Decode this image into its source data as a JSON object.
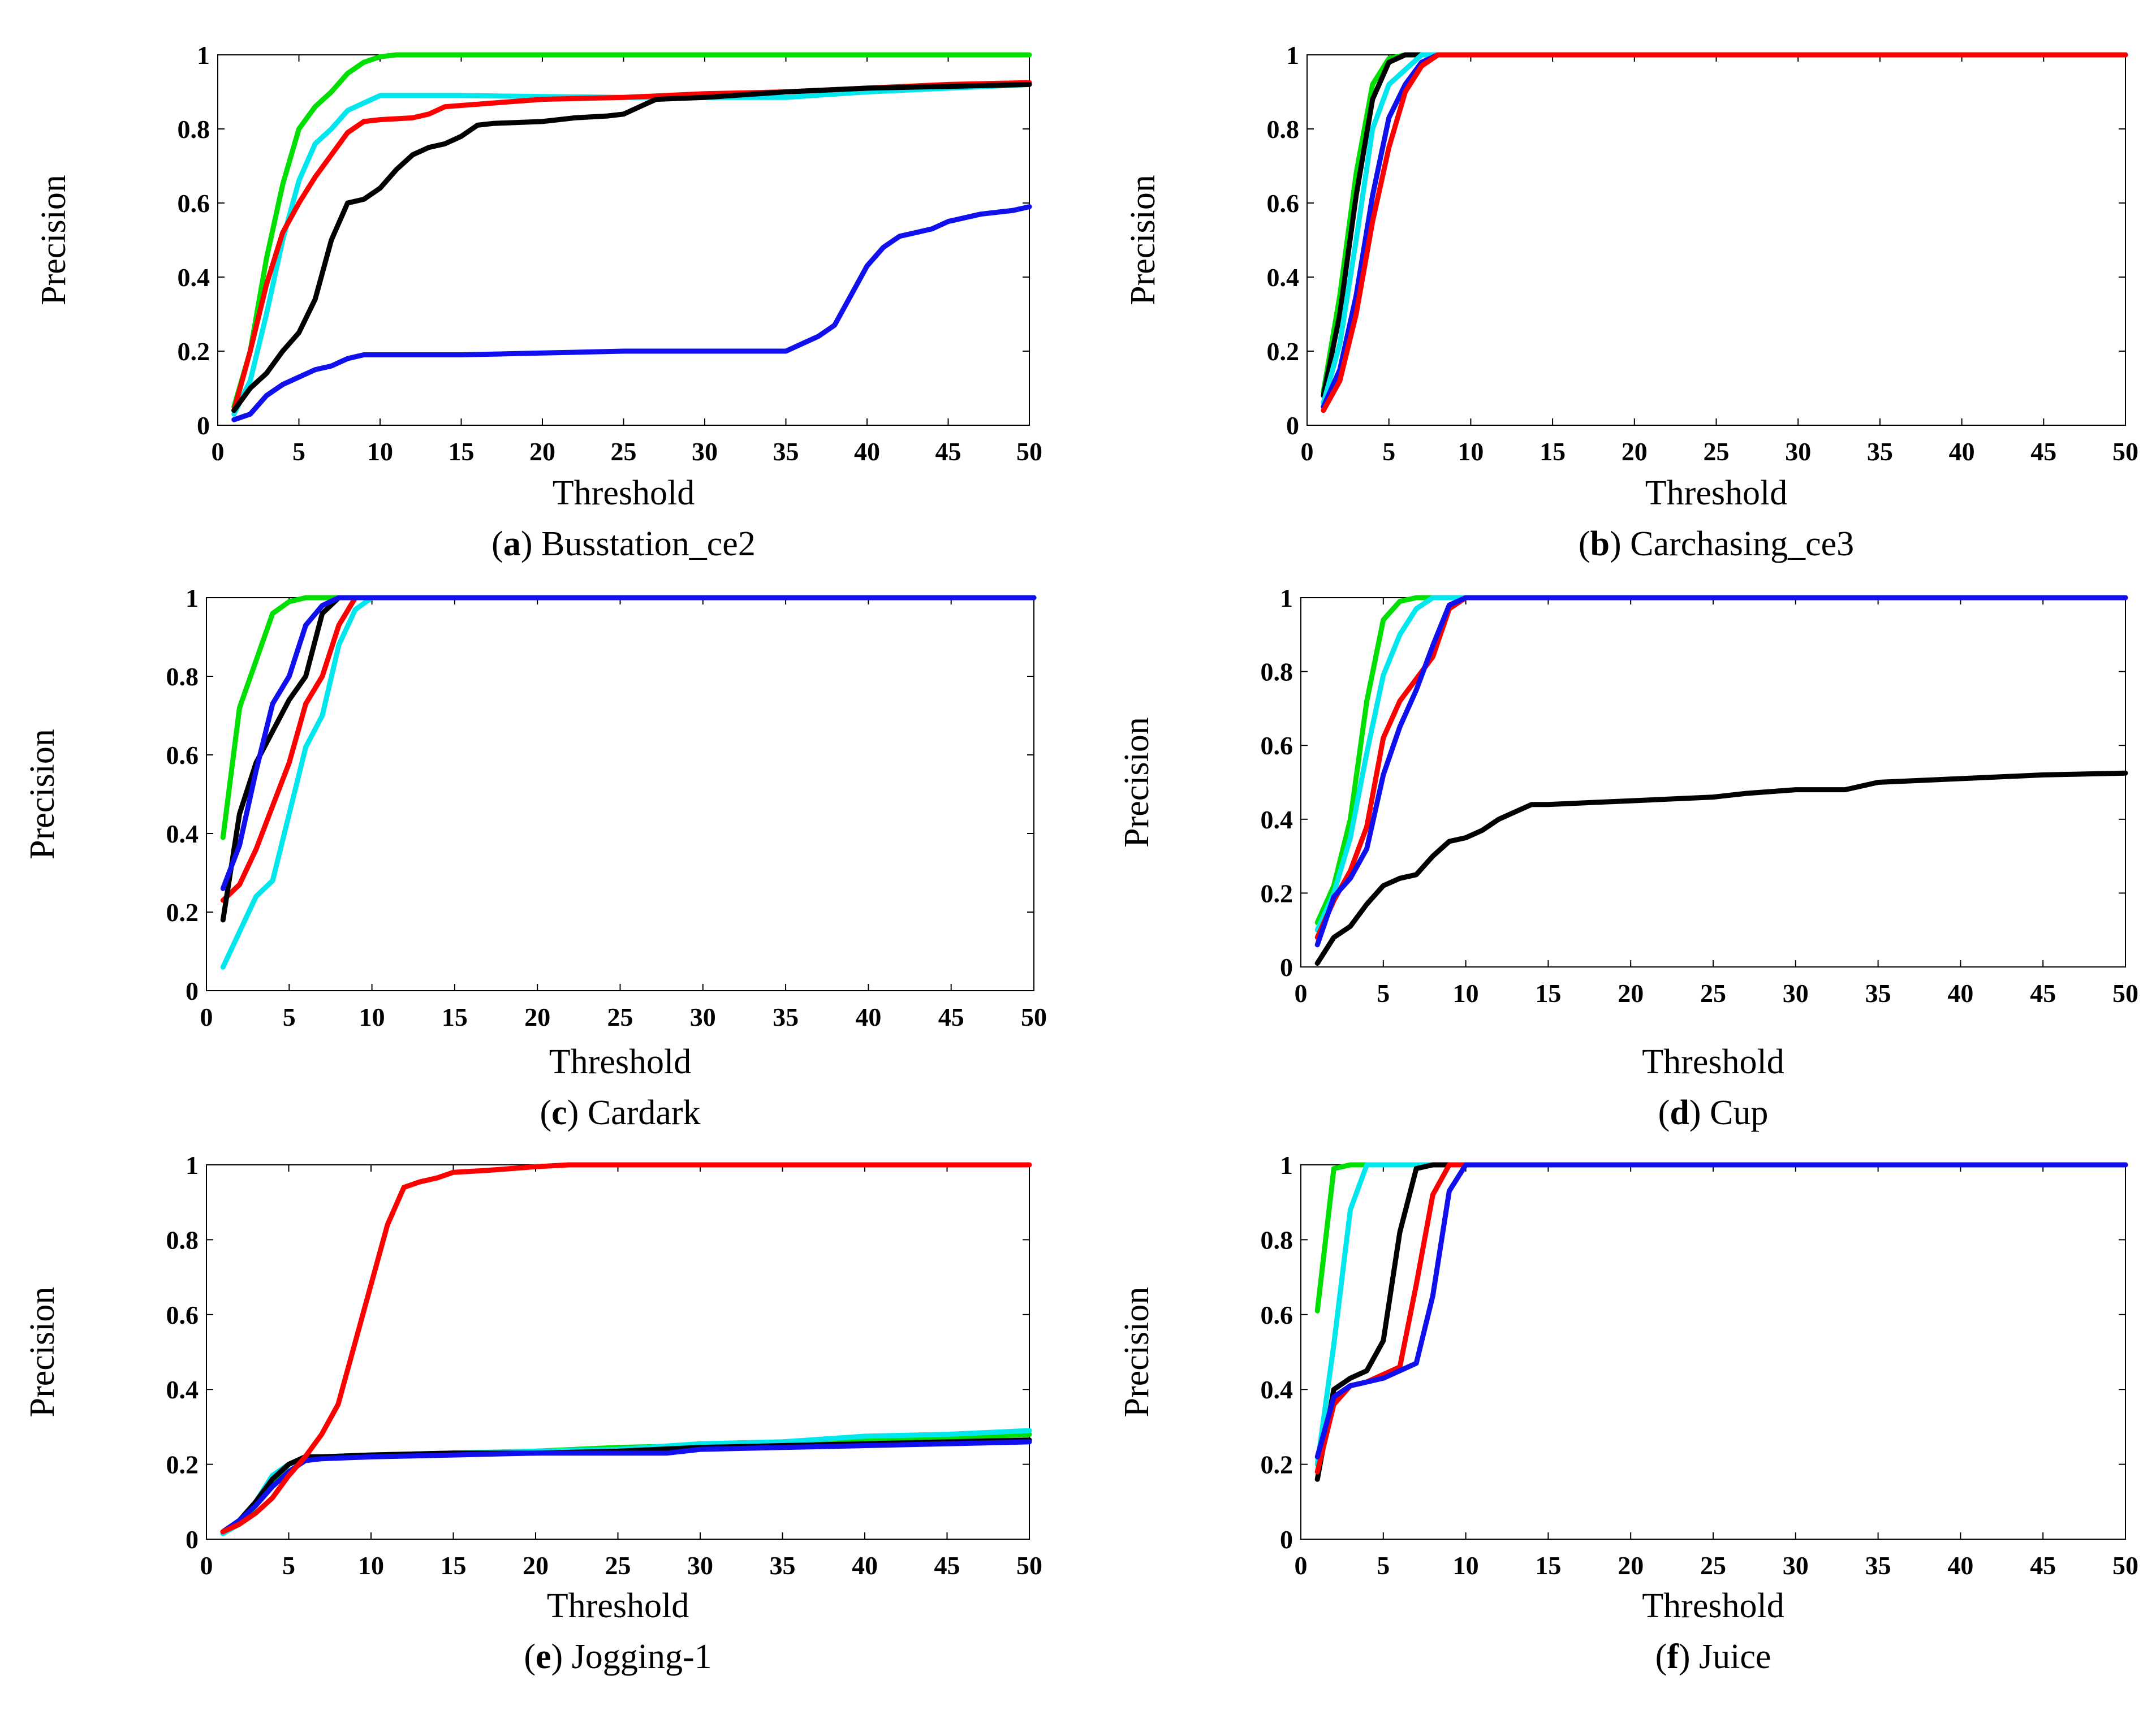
{
  "series_colors": {
    "green": "#00e000",
    "cyan": "#00e8ee",
    "red": "#ff0000",
    "black": "#000000",
    "blue": "#1010ee"
  },
  "chart_data": [
    {
      "type": "line",
      "panel_letter": "a",
      "title": "Busstation_ce2",
      "xlabel": "Threshold",
      "ylabel": "Precision",
      "xlim": [
        0,
        50
      ],
      "ylim": [
        0,
        1
      ],
      "xticks": [
        "0",
        "5",
        "10",
        "15",
        "20",
        "25",
        "30",
        "35",
        "40",
        "45",
        "50"
      ],
      "yticks": [
        "0",
        "0.2",
        "0.4",
        "0.6",
        "0.8",
        "1"
      ],
      "series": [
        {
          "name": "green",
          "x": [
            1,
            2,
            3,
            4,
            5,
            6,
            7,
            8,
            9,
            10,
            11,
            50
          ],
          "values": [
            0.05,
            0.2,
            0.45,
            0.65,
            0.8,
            0.86,
            0.9,
            0.95,
            0.98,
            0.995,
            1.0,
            1.0
          ]
        },
        {
          "name": "cyan",
          "x": [
            1,
            2,
            3,
            4,
            5,
            6,
            7,
            8,
            9,
            10,
            15,
            25,
            35,
            40,
            45,
            50
          ],
          "values": [
            0.03,
            0.12,
            0.3,
            0.5,
            0.66,
            0.76,
            0.8,
            0.85,
            0.87,
            0.89,
            0.89,
            0.885,
            0.885,
            0.9,
            0.91,
            0.92
          ]
        },
        {
          "name": "red",
          "x": [
            1,
            2,
            3,
            4,
            5,
            6,
            7,
            8,
            9,
            10,
            12,
            13,
            14,
            17,
            20,
            25,
            30,
            35,
            40,
            45,
            50
          ],
          "values": [
            0.04,
            0.2,
            0.38,
            0.52,
            0.6,
            0.67,
            0.73,
            0.79,
            0.82,
            0.825,
            0.83,
            0.84,
            0.86,
            0.87,
            0.88,
            0.885,
            0.895,
            0.9,
            0.91,
            0.92,
            0.925
          ]
        },
        {
          "name": "black",
          "x": [
            1,
            2,
            3,
            4,
            5,
            6,
            7,
            8,
            9,
            10,
            11,
            12,
            13,
            14,
            15,
            16,
            17,
            20,
            22,
            24,
            25,
            26,
            27,
            30,
            35,
            40,
            45,
            50
          ],
          "values": [
            0.04,
            0.1,
            0.14,
            0.2,
            0.25,
            0.34,
            0.5,
            0.6,
            0.61,
            0.64,
            0.69,
            0.73,
            0.75,
            0.76,
            0.78,
            0.81,
            0.815,
            0.82,
            0.83,
            0.835,
            0.84,
            0.86,
            0.88,
            0.885,
            0.9,
            0.91,
            0.915,
            0.92
          ]
        },
        {
          "name": "blue",
          "x": [
            1,
            2,
            3,
            4,
            5,
            6,
            7,
            8,
            9,
            10,
            15,
            20,
            25,
            30,
            35,
            36,
            37,
            38,
            39,
            40,
            41,
            42,
            43,
            44,
            45,
            46,
            47,
            48,
            49,
            50
          ],
          "values": [
            0.015,
            0.03,
            0.08,
            0.11,
            0.13,
            0.15,
            0.16,
            0.18,
            0.19,
            0.19,
            0.19,
            0.195,
            0.2,
            0.2,
            0.2,
            0.22,
            0.24,
            0.27,
            0.35,
            0.43,
            0.48,
            0.51,
            0.52,
            0.53,
            0.55,
            0.56,
            0.57,
            0.575,
            0.58,
            0.59
          ]
        }
      ]
    },
    {
      "type": "line",
      "panel_letter": "b",
      "title": "Carchasing_ce3",
      "xlabel": "Threshold",
      "ylabel": "Precision",
      "xlim": [
        0,
        50
      ],
      "ylim": [
        0,
        1
      ],
      "xticks": [
        "0",
        "5",
        "10",
        "15",
        "20",
        "25",
        "30",
        "35",
        "40",
        "45",
        "50"
      ],
      "yticks": [
        "0",
        "0.2",
        "0.4",
        "0.6",
        "0.8",
        "1"
      ],
      "series": [
        {
          "name": "green",
          "x": [
            1,
            2,
            3,
            4,
            5,
            6,
            50
          ],
          "values": [
            0.09,
            0.35,
            0.68,
            0.92,
            0.99,
            1.0,
            1.0
          ]
        },
        {
          "name": "black",
          "x": [
            1,
            2,
            3,
            4,
            5,
            6,
            7,
            50
          ],
          "values": [
            0.08,
            0.3,
            0.62,
            0.88,
            0.98,
            1.0,
            1.0,
            1.0
          ]
        },
        {
          "name": "cyan",
          "x": [
            1,
            2,
            3,
            4,
            5,
            6,
            7,
            50
          ],
          "values": [
            0.06,
            0.22,
            0.5,
            0.8,
            0.92,
            0.96,
            1.0,
            1.0
          ]
        },
        {
          "name": "blue",
          "x": [
            1,
            2,
            3,
            4,
            5,
            6,
            7,
            8,
            50
          ],
          "values": [
            0.05,
            0.15,
            0.35,
            0.62,
            0.83,
            0.92,
            0.98,
            1.0,
            1.0
          ]
        },
        {
          "name": "red",
          "x": [
            1,
            2,
            3,
            4,
            5,
            6,
            7,
            8,
            50
          ],
          "values": [
            0.04,
            0.12,
            0.3,
            0.55,
            0.75,
            0.9,
            0.97,
            1.0,
            1.0
          ]
        }
      ]
    },
    {
      "type": "line",
      "panel_letter": "c",
      "title": "Cardark",
      "xlabel": "Threshold",
      "ylabel": "Precision",
      "xlim": [
        0,
        50
      ],
      "ylim": [
        0,
        1
      ],
      "xticks": [
        "0",
        "5",
        "10",
        "15",
        "20",
        "25",
        "30",
        "35",
        "40",
        "45",
        "50"
      ],
      "yticks": [
        "0",
        "0.2",
        "0.4",
        "0.6",
        "0.8",
        "1"
      ],
      "series": [
        {
          "name": "green",
          "x": [
            1,
            2,
            3,
            4,
            5,
            6,
            50
          ],
          "values": [
            0.39,
            0.72,
            0.84,
            0.96,
            0.99,
            1.0,
            1.0
          ]
        },
        {
          "name": "cyan",
          "x": [
            1,
            2,
            3,
            4,
            5,
            6,
            7,
            8,
            9,
            10,
            50
          ],
          "values": [
            0.06,
            0.15,
            0.24,
            0.28,
            0.45,
            0.62,
            0.7,
            0.88,
            0.97,
            1.0,
            1.0
          ]
        },
        {
          "name": "red",
          "x": [
            1,
            2,
            3,
            4,
            5,
            6,
            7,
            8,
            9,
            50
          ],
          "values": [
            0.23,
            0.27,
            0.36,
            0.47,
            0.58,
            0.73,
            0.8,
            0.93,
            1.0,
            1.0
          ]
        },
        {
          "name": "black",
          "x": [
            1,
            2,
            3,
            4,
            5,
            6,
            7,
            8,
            50
          ],
          "values": [
            0.18,
            0.45,
            0.58,
            0.66,
            0.74,
            0.8,
            0.96,
            1.0,
            1.0
          ]
        },
        {
          "name": "blue",
          "x": [
            1,
            2,
            3,
            4,
            5,
            6,
            7,
            8,
            50
          ],
          "values": [
            0.26,
            0.37,
            0.56,
            0.73,
            0.8,
            0.93,
            0.98,
            1.0,
            1.0
          ]
        }
      ]
    },
    {
      "type": "line",
      "panel_letter": "d",
      "title": "Cup",
      "xlabel": "Threshold",
      "ylabel": "Precision",
      "xlim": [
        0,
        50
      ],
      "ylim": [
        0,
        1
      ],
      "xticks": [
        "0",
        "5",
        "10",
        "15",
        "20",
        "25",
        "30",
        "35",
        "40",
        "45",
        "50"
      ],
      "yticks": [
        "0",
        "0.2",
        "0.4",
        "0.6",
        "0.8",
        "1"
      ],
      "series": [
        {
          "name": "green",
          "x": [
            1,
            2,
            3,
            4,
            5,
            6,
            7,
            50
          ],
          "values": [
            0.12,
            0.22,
            0.4,
            0.72,
            0.94,
            0.99,
            1.0,
            1.0
          ]
        },
        {
          "name": "cyan",
          "x": [
            1,
            2,
            3,
            4,
            5,
            6,
            7,
            8,
            50
          ],
          "values": [
            0.1,
            0.2,
            0.35,
            0.58,
            0.79,
            0.9,
            0.97,
            1.0,
            1.0
          ]
        },
        {
          "name": "red",
          "x": [
            1,
            2,
            3,
            4,
            5,
            6,
            7,
            8,
            9,
            10,
            50
          ],
          "values": [
            0.08,
            0.18,
            0.26,
            0.38,
            0.62,
            0.72,
            0.78,
            0.84,
            0.97,
            1.0,
            1.0
          ]
        },
        {
          "name": "blue",
          "x": [
            1,
            2,
            3,
            4,
            5,
            6,
            7,
            8,
            9,
            10,
            50
          ],
          "values": [
            0.06,
            0.19,
            0.24,
            0.32,
            0.52,
            0.65,
            0.75,
            0.87,
            0.98,
            1.0,
            1.0
          ]
        },
        {
          "name": "black",
          "x": [
            1,
            2,
            3,
            4,
            5,
            6,
            7,
            8,
            9,
            10,
            11,
            12,
            13,
            14,
            15,
            20,
            25,
            27,
            30,
            33,
            35,
            40,
            45,
            50
          ],
          "values": [
            0.01,
            0.08,
            0.11,
            0.17,
            0.22,
            0.24,
            0.25,
            0.3,
            0.34,
            0.35,
            0.37,
            0.4,
            0.42,
            0.44,
            0.44,
            0.45,
            0.46,
            0.47,
            0.48,
            0.48,
            0.5,
            0.51,
            0.52,
            0.525
          ]
        }
      ]
    },
    {
      "type": "line",
      "panel_letter": "e",
      "title": "Jogging-1",
      "xlabel": "Threshold",
      "ylabel": "Precision",
      "xlim": [
        0,
        50
      ],
      "ylim": [
        0,
        1
      ],
      "xticks": [
        "0",
        "5",
        "10",
        "15",
        "20",
        "25",
        "30",
        "35",
        "40",
        "45",
        "50"
      ],
      "yticks": [
        "0",
        "0.2",
        "0.4",
        "0.6",
        "0.8",
        "1"
      ],
      "series": [
        {
          "name": "green",
          "x": [
            1,
            2,
            3,
            4,
            5,
            6,
            7,
            10,
            15,
            20,
            25,
            30,
            35,
            40,
            45,
            50
          ],
          "values": [
            0.02,
            0.04,
            0.09,
            0.15,
            0.2,
            0.22,
            0.22,
            0.225,
            0.23,
            0.235,
            0.245,
            0.25,
            0.26,
            0.265,
            0.27,
            0.28
          ]
        },
        {
          "name": "cyan",
          "x": [
            1,
            2,
            3,
            4,
            5,
            6,
            7,
            10,
            15,
            20,
            25,
            30,
            35,
            40,
            45,
            50
          ],
          "values": [
            0.015,
            0.04,
            0.1,
            0.17,
            0.2,
            0.22,
            0.22,
            0.225,
            0.23,
            0.235,
            0.24,
            0.255,
            0.26,
            0.275,
            0.28,
            0.29
          ]
        },
        {
          "name": "black",
          "x": [
            1,
            2,
            3,
            4,
            5,
            6,
            7,
            10,
            15,
            20,
            25,
            30,
            35,
            40,
            45,
            50
          ],
          "values": [
            0.02,
            0.05,
            0.1,
            0.16,
            0.2,
            0.22,
            0.22,
            0.225,
            0.23,
            0.23,
            0.235,
            0.245,
            0.25,
            0.255,
            0.26,
            0.265
          ]
        },
        {
          "name": "blue",
          "x": [
            1,
            2,
            3,
            4,
            5,
            6,
            7,
            10,
            15,
            20,
            25,
            28,
            30,
            35,
            40,
            45,
            50
          ],
          "values": [
            0.02,
            0.05,
            0.09,
            0.14,
            0.18,
            0.21,
            0.215,
            0.22,
            0.225,
            0.23,
            0.23,
            0.23,
            0.24,
            0.245,
            0.25,
            0.255,
            0.26
          ]
        },
        {
          "name": "red",
          "x": [
            1,
            2,
            3,
            4,
            5,
            6,
            7,
            8,
            9,
            10,
            11,
            12,
            13,
            14,
            15,
            17,
            20,
            22,
            25,
            50
          ],
          "values": [
            0.02,
            0.04,
            0.07,
            0.11,
            0.17,
            0.22,
            0.28,
            0.36,
            0.52,
            0.68,
            0.84,
            0.94,
            0.955,
            0.965,
            0.98,
            0.985,
            0.995,
            1.0,
            1.0,
            1.0
          ]
        }
      ]
    },
    {
      "type": "line",
      "panel_letter": "f",
      "title": "Juice",
      "xlabel": "Threshold",
      "ylabel": "Precision",
      "xlim": [
        0,
        50
      ],
      "ylim": [
        0,
        1
      ],
      "xticks": [
        "0",
        "5",
        "10",
        "15",
        "20",
        "25",
        "30",
        "35",
        "40",
        "45",
        "50"
      ],
      "yticks": [
        "0",
        "0.2",
        "0.4",
        "0.6",
        "0.8",
        "1"
      ],
      "series": [
        {
          "name": "green",
          "x": [
            1,
            2,
            3,
            50
          ],
          "values": [
            0.61,
            0.99,
            1.0,
            1.0
          ]
        },
        {
          "name": "cyan",
          "x": [
            1,
            2,
            3,
            4,
            50
          ],
          "values": [
            0.2,
            0.52,
            0.88,
            1.0,
            1.0
          ]
        },
        {
          "name": "black",
          "x": [
            1,
            2,
            3,
            4,
            5,
            6,
            7,
            8,
            9,
            50
          ],
          "values": [
            0.16,
            0.4,
            0.43,
            0.45,
            0.53,
            0.82,
            0.99,
            1.0,
            1.0,
            1.0
          ]
        },
        {
          "name": "red",
          "x": [
            1,
            2,
            3,
            4,
            5,
            6,
            7,
            8,
            9,
            50
          ],
          "values": [
            0.18,
            0.36,
            0.41,
            0.42,
            0.44,
            0.46,
            0.68,
            0.92,
            1.0,
            1.0
          ]
        },
        {
          "name": "blue",
          "x": [
            1,
            2,
            3,
            4,
            5,
            6,
            7,
            8,
            9,
            10,
            50
          ],
          "values": [
            0.22,
            0.38,
            0.41,
            0.42,
            0.43,
            0.45,
            0.47,
            0.65,
            0.93,
            1.0,
            1.0
          ]
        }
      ]
    }
  ]
}
